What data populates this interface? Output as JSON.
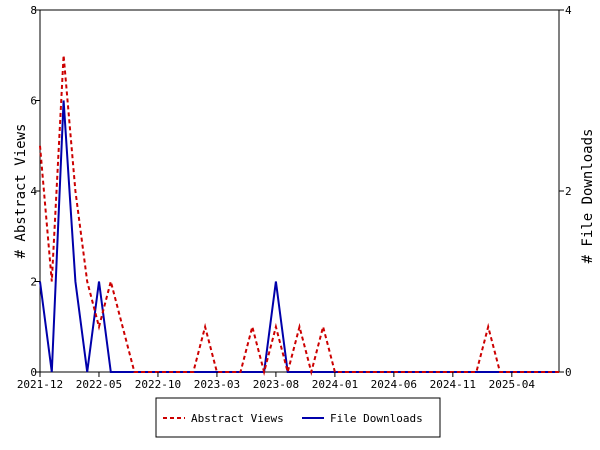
{
  "chart_data": {
    "type": "line",
    "xlabel": "",
    "ylabel_left": "# Abstract Views",
    "ylabel_right": "# File Downloads",
    "ylim_left": [
      0,
      8
    ],
    "ylim_right": [
      0,
      4
    ],
    "yticks_left": [
      "0",
      "2",
      "4",
      "6",
      "8"
    ],
    "yticks_right": [
      "0",
      "2",
      "4"
    ],
    "x_tick_labels": [
      "2021-12",
      "2022-05",
      "2022-10",
      "2023-03",
      "2023-08",
      "2024-01",
      "2024-06",
      "2024-11",
      "2025-04"
    ],
    "x_months": [
      "2021-12",
      "2022-01",
      "2022-02",
      "2022-03",
      "2022-04",
      "2022-05",
      "2022-06",
      "2022-07",
      "2022-08",
      "2022-09",
      "2022-10",
      "2022-11",
      "2022-12",
      "2023-01",
      "2023-02",
      "2023-03",
      "2023-04",
      "2023-05",
      "2023-06",
      "2023-07",
      "2023-08",
      "2023-09",
      "2023-10",
      "2023-11",
      "2023-12",
      "2024-01",
      "2024-02",
      "2024-03",
      "2024-04",
      "2024-05",
      "2024-06",
      "2024-07",
      "2024-08",
      "2024-09",
      "2024-10",
      "2024-11",
      "2024-12",
      "2025-01",
      "2025-02",
      "2025-03",
      "2025-04",
      "2025-05",
      "2025-06",
      "2025-07",
      "2025-08"
    ],
    "legend_position": "bottom",
    "grid": false,
    "series": [
      {
        "name": "Abstract Views",
        "axis": "left",
        "color": "#cc0000",
        "dash": "dashed",
        "values": [
          5,
          2,
          7,
          4,
          2,
          1,
          2,
          1,
          0,
          0,
          0,
          0,
          0,
          0,
          1,
          0,
          0,
          0,
          1,
          0,
          1,
          0,
          1,
          0,
          1,
          0,
          0,
          0,
          0,
          0,
          0,
          0,
          0,
          0,
          0,
          0,
          0,
          0,
          1,
          0,
          0,
          0,
          0,
          0,
          0
        ]
      },
      {
        "name": "File Downloads",
        "axis": "right",
        "color": "#0000aa",
        "dash": "solid",
        "values": [
          1,
          0,
          3,
          1,
          0,
          1,
          0,
          0,
          0,
          0,
          0,
          0,
          0,
          0,
          0,
          0,
          0,
          0,
          0,
          0,
          1,
          0,
          0,
          0,
          0,
          0,
          0,
          0,
          0,
          0,
          0,
          0,
          0,
          0,
          0,
          0,
          0,
          0,
          0,
          0,
          0,
          0,
          0,
          0,
          0
        ]
      }
    ]
  }
}
